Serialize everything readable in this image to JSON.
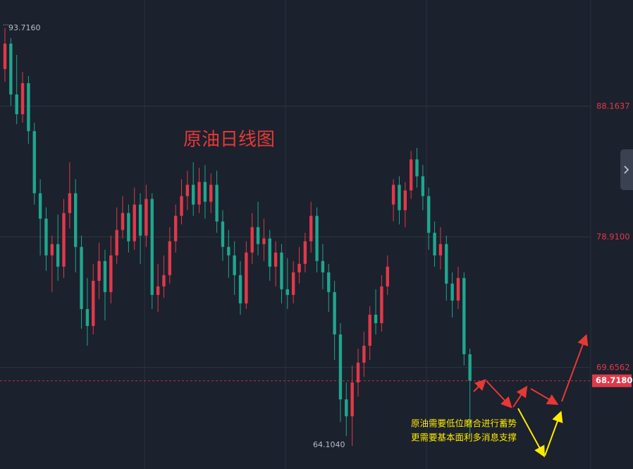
{
  "chart_data": {
    "type": "candlestick",
    "title": "原油日线图",
    "annotation_lines": [
      "原油需要低位磨合进行蓄势",
      "更需要基本面利多消息支撑"
    ],
    "max_label": "93.7160",
    "min_label": "64.1040",
    "current_price": 68.718,
    "current_price_label": "68.7180",
    "up_color": "#e0394a",
    "down_color": "#1fa68e",
    "ylim": [
      62.47,
      95.69
    ],
    "yticks": [
      88.1637,
      {
        "value": 78.91,
        "label": "78.9100"
      },
      69.6562
    ],
    "grid": true,
    "open": [
      90.8,
      92.6,
      89.0,
      87.6,
      89.8,
      86.4,
      82.0,
      80.2,
      77.6,
      78.4,
      76.8,
      80.6,
      82.0,
      78.2,
      73.8,
      72.6,
      75.8,
      77.2,
      75.0,
      77.6,
      79.4,
      80.6,
      78.6,
      81.2,
      79.0,
      81.6,
      74.8,
      75.4,
      76.2,
      78.6,
      80.4,
      81.8,
      82.6,
      81.2,
      82.8,
      81.4,
      82.6,
      80.0,
      78.2,
      77.6,
      76.2,
      74.2,
      77.8,
      79.6,
      78.4,
      78.8,
      76.8,
      77.8,
      75.2,
      74.8,
      76.4,
      77.0,
      78.6,
      80.4,
      77.2,
      76.4,
      75.0,
      72.0,
      67.4,
      66.2,
      68.6,
      70.0,
      71.2,
      73.4,
      72.8,
      75.4,
      81.2,
      82.6,
      80.8,
      82.2,
      84.4,
      83.2,
      81.8,
      79.2,
      77.6,
      78.4,
      75.6,
      74.4,
      76.0,
      70.6
    ],
    "high": [
      93.716,
      93.0,
      91.8,
      90.6,
      90.3,
      87.0,
      83.0,
      81.0,
      79.0,
      80.5,
      81.6,
      84.2,
      83.0,
      79.0,
      76.0,
      77.0,
      78.5,
      78.0,
      79.0,
      81.0,
      81.8,
      81.2,
      82.4,
      82.0,
      82.6,
      82.0,
      77.0,
      77.6,
      79.6,
      81.2,
      83.0,
      83.6,
      84.2,
      83.8,
      84.0,
      83.4,
      83.6,
      80.8,
      79.4,
      78.6,
      77.2,
      78.6,
      80.6,
      81.4,
      80.2,
      79.4,
      78.6,
      78.4,
      77.4,
      77.2,
      78.2,
      79.2,
      81.4,
      81.0,
      78.4,
      77.0,
      75.8,
      72.8,
      68.6,
      69.8,
      71.0,
      72.2,
      74.0,
      75.2,
      76.2,
      77.6,
      83.0,
      83.2,
      82.8,
      85.0,
      85.2,
      84.0,
      82.4,
      80.0,
      79.6,
      79.0,
      76.4,
      76.8,
      76.4,
      71.0
    ],
    "low": [
      89.9,
      88.2,
      86.9,
      87.0,
      85.5,
      81.2,
      77.6,
      76.5,
      75.0,
      75.8,
      76.0,
      79.5,
      76.4,
      72.4,
      71.2,
      72.0,
      74.5,
      73.0,
      74.2,
      77.0,
      78.8,
      77.8,
      78.0,
      77.0,
      78.2,
      73.8,
      73.6,
      74.6,
      75.6,
      77.8,
      79.8,
      80.8,
      80.4,
      80.6,
      80.2,
      80.6,
      79.2,
      77.2,
      76.0,
      74.8,
      73.4,
      73.8,
      77.0,
      77.6,
      77.2,
      75.8,
      75.4,
      74.2,
      73.8,
      74.2,
      75.6,
      76.4,
      77.8,
      76.4,
      75.2,
      73.6,
      70.2,
      65.8,
      64.8,
      64.104,
      67.6,
      69.0,
      70.2,
      72.0,
      72.2,
      74.8,
      80.0,
      79.8,
      79.6,
      81.6,
      82.4,
      80.8,
      78.0,
      76.8,
      76.6,
      74.4,
      73.2,
      73.8,
      69.8,
      64.8
    ],
    "close": [
      92.6,
      89.0,
      87.6,
      89.8,
      86.4,
      82.0,
      80.2,
      77.6,
      78.4,
      76.8,
      80.6,
      82.0,
      78.2,
      73.8,
      72.6,
      75.8,
      77.2,
      75.0,
      77.6,
      79.4,
      80.6,
      78.6,
      81.2,
      79.0,
      81.6,
      74.8,
      75.4,
      76.2,
      78.6,
      80.4,
      81.8,
      82.6,
      81.2,
      82.8,
      81.4,
      82.6,
      80.0,
      78.2,
      77.6,
      76.2,
      74.2,
      77.8,
      79.6,
      78.4,
      78.8,
      76.8,
      77.8,
      75.2,
      74.8,
      76.4,
      77.0,
      78.6,
      80.4,
      77.2,
      76.4,
      75.0,
      72.0,
      67.4,
      66.2,
      68.6,
      70.0,
      71.2,
      73.4,
      72.8,
      75.4,
      76.8,
      82.6,
      80.8,
      82.2,
      84.4,
      83.2,
      81.8,
      79.2,
      77.6,
      78.4,
      75.6,
      74.4,
      76.0,
      70.6,
      68.718
    ]
  }
}
